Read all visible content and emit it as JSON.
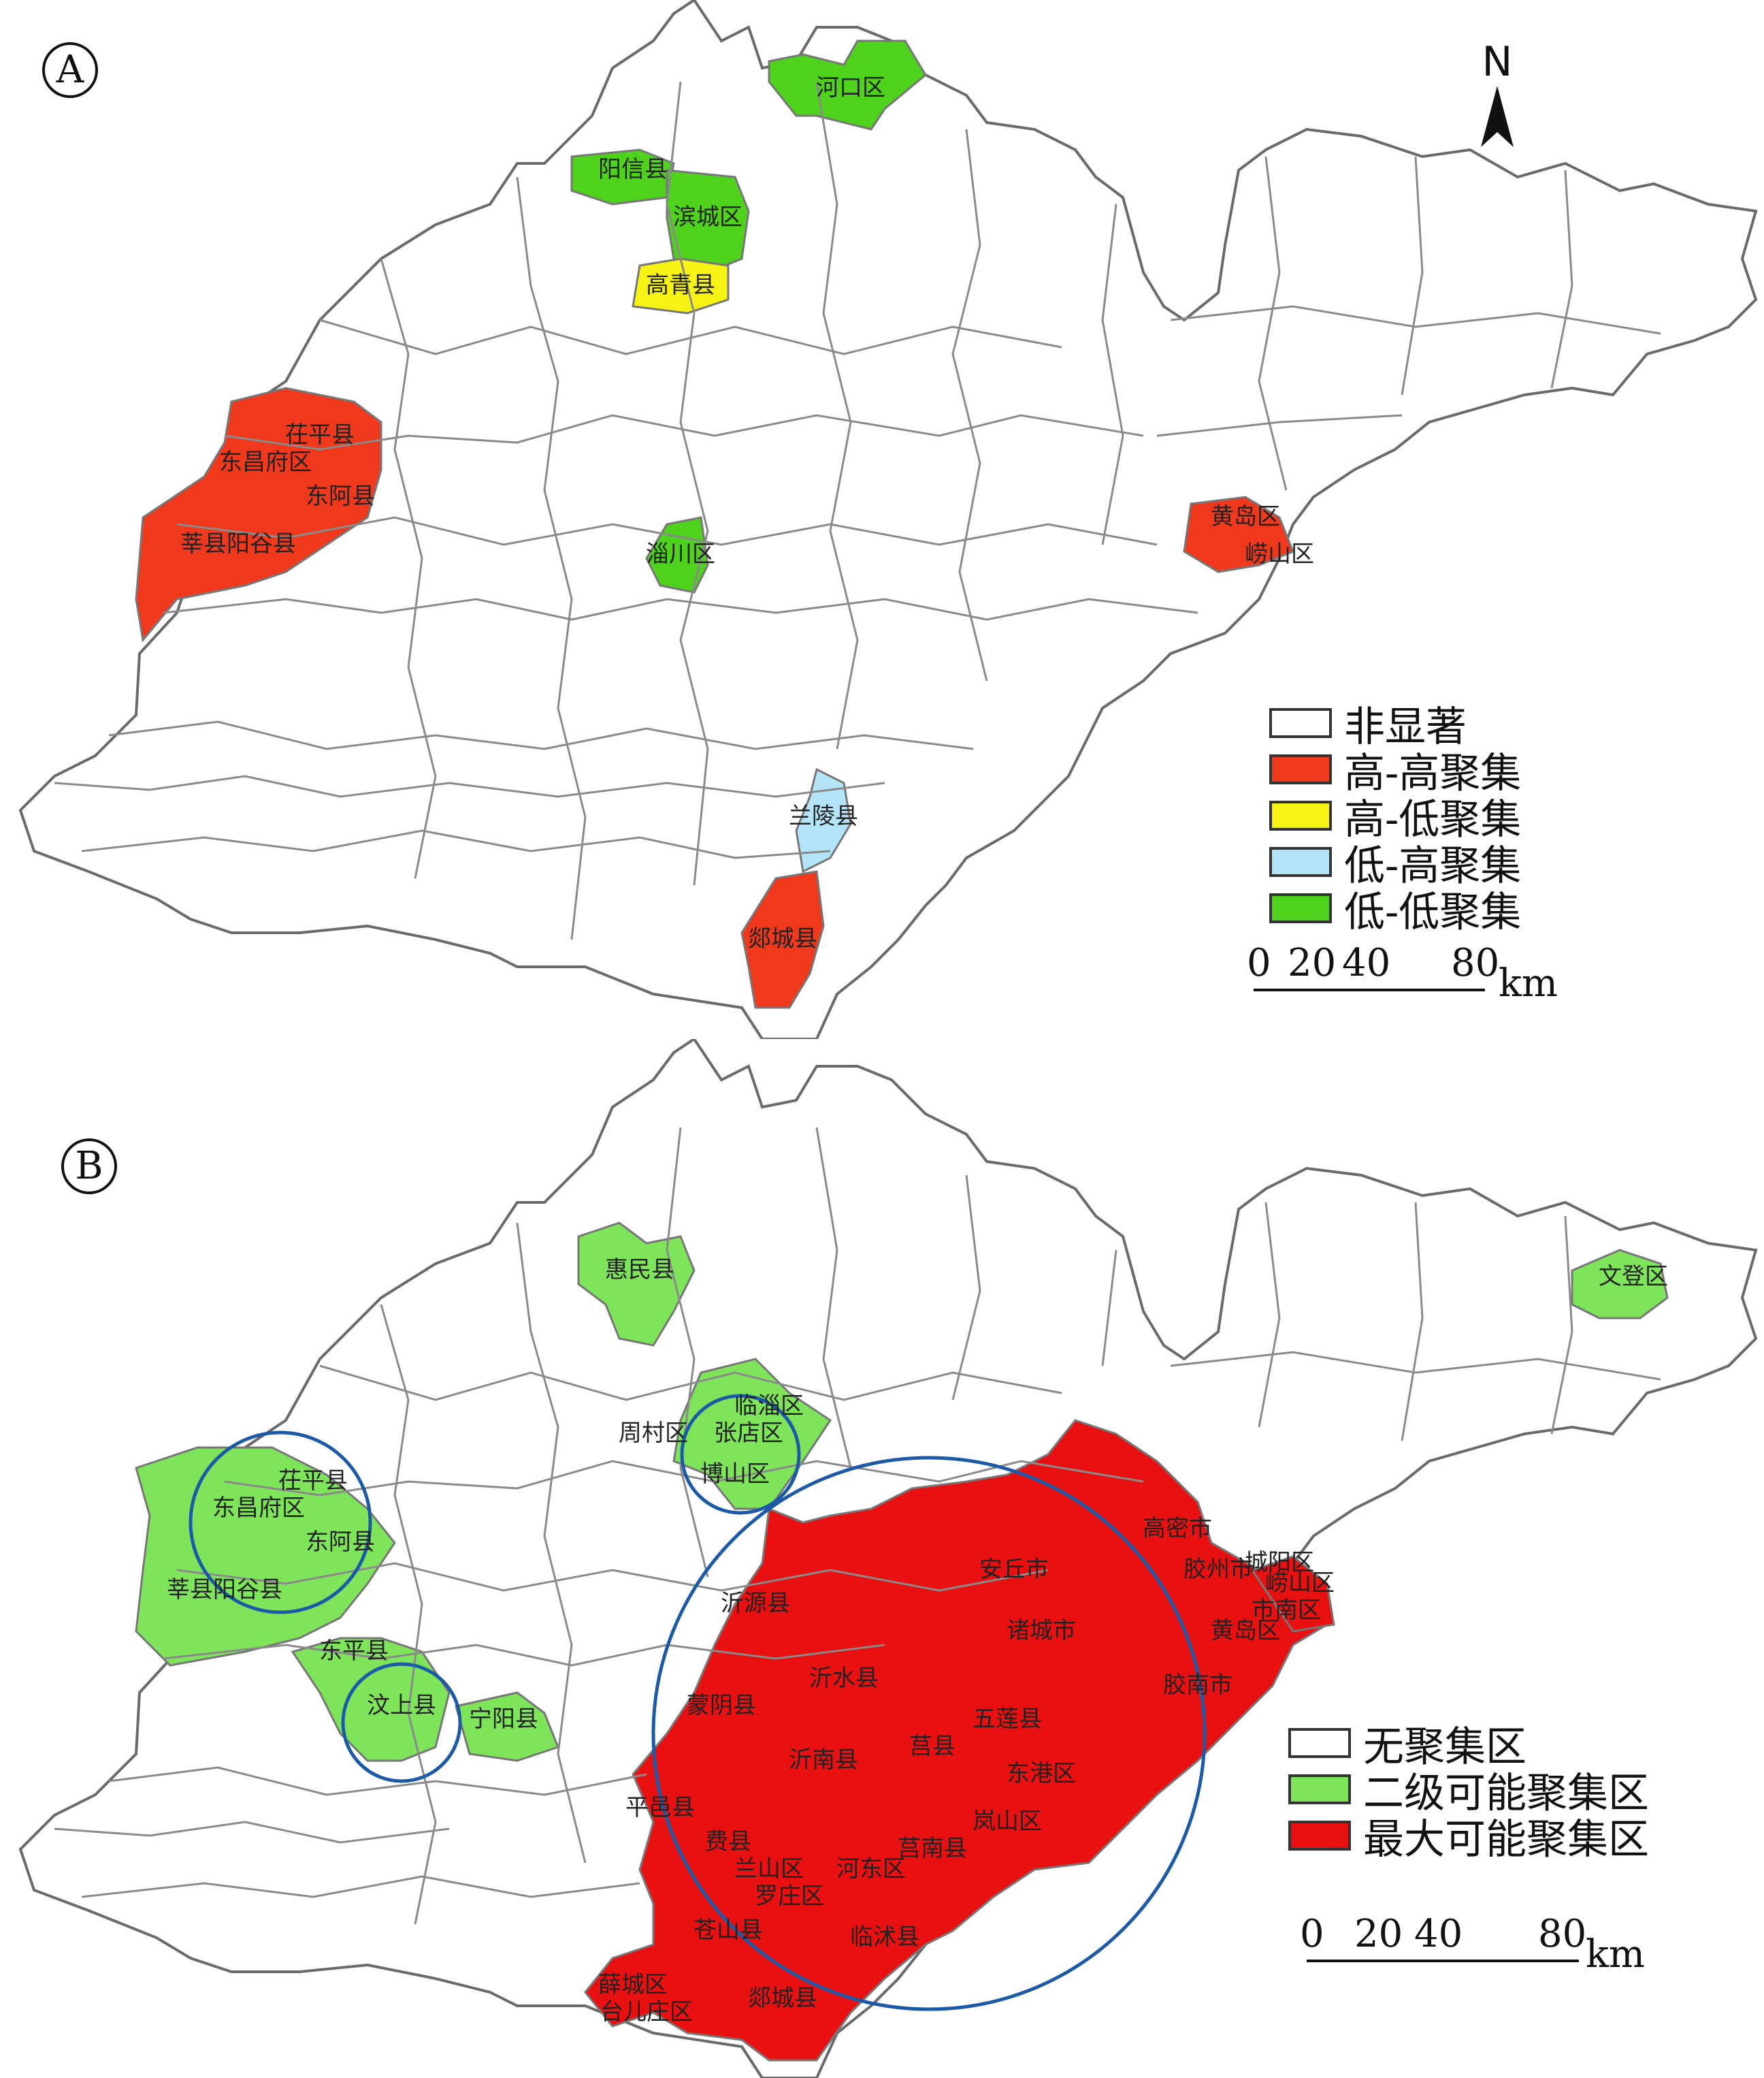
{
  "colors": {
    "nonsig": "#ffffff",
    "high_high": "#f0381c",
    "high_low": "#f6f214",
    "low_high": "#b4e4f8",
    "low_low": "#4ed21c",
    "secondary": "#7ee45a",
    "maximum": "#e81010",
    "circle": "#1c5aa8",
    "border": "#8a8a8a"
  },
  "panel_a": {
    "label": "A",
    "north": "N",
    "legend": [
      {
        "key": "nonsig",
        "label": "非显著"
      },
      {
        "key": "high_high",
        "label": "高-高聚集"
      },
      {
        "key": "high_low",
        "label": "高-低聚集"
      },
      {
        "key": "low_high",
        "label": "低-高聚集"
      },
      {
        "key": "low_low",
        "label": "低-低聚集"
      }
    ],
    "scale": {
      "ticks": [
        "0",
        "20",
        "40",
        "80"
      ],
      "unit": "km"
    },
    "regions": {
      "hekou": "河口区",
      "yangxin": "阳信县",
      "bincheng": "滨城区",
      "gaoqing": "高青县",
      "chiping": "茌平县",
      "dongchangfu": "东昌府区",
      "donge": "东阿县",
      "xinyanggu": "莘县阳谷县",
      "zichuan": "淄川区",
      "huangdao": "黄岛区",
      "laoshan": "崂山区",
      "lanling": "兰陵县",
      "tancheng": "郯城县"
    }
  },
  "panel_b": {
    "label": "B",
    "legend": [
      {
        "key": "nonsig",
        "label": "无聚集区"
      },
      {
        "key": "secondary",
        "label": "二级可能聚集区"
      },
      {
        "key": "maximum",
        "label": "最大可能聚集区"
      }
    ],
    "scale": {
      "ticks": [
        "0",
        "20",
        "40",
        "80"
      ],
      "unit": "km"
    },
    "regions": {
      "huimin": "惠民县",
      "wendeng": "文登区",
      "linzi": "临淄区",
      "zhangdian": "张店区",
      "boshan": "博山区",
      "zhoucun": "周村区",
      "chiping": "茌平县",
      "dongchangfu": "东昌府区",
      "donge": "东阿县",
      "xinyanggu": "莘县阳谷县",
      "dongping": "东平县",
      "wenshang": "汶上县",
      "ningyang": "宁阳县",
      "anqiu": "安丘市",
      "gaomi": "高密市",
      "jiaozhou": "胶州市",
      "chengyang": "城阳区",
      "laoshan": "崂山区",
      "shinan": "市南区",
      "yiyuan": "沂源县",
      "zhucheng": "诸城市",
      "huangdao": "黄岛区",
      "jiaonan": "胶南市",
      "yishui": "沂水县",
      "mengyin": "蒙阴县",
      "wulian": "五莲县",
      "juxian": "莒县",
      "yinan": "沂南县",
      "donggang": "东港区",
      "pingyi": "平邑县",
      "lanshan": "岚山区",
      "feixian": "费县",
      "lanshan_linyi": "兰山区",
      "hedong": "河东区",
      "junan": "莒南县",
      "luozhuang": "罗庄区",
      "cangshan": "苍山县",
      "linshu": "临沭县",
      "xuecheng": "薛城区",
      "taierzhuang": "台儿庄区",
      "tancheng": "郯城县"
    }
  }
}
